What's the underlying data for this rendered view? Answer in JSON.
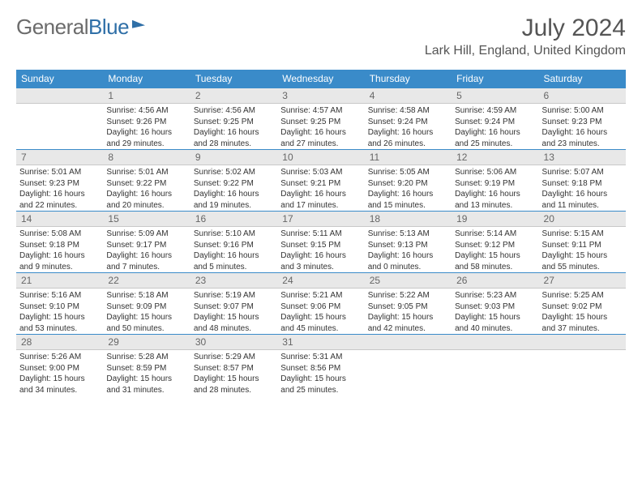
{
  "logo": {
    "word1": "General",
    "word2": "Blue"
  },
  "title": "July 2024",
  "location": "Lark Hill, England, United Kingdom",
  "colors": {
    "header_bg": "#3a8bc9",
    "header_text": "#ffffff",
    "day_bg": "#e8e8e8",
    "accent_line": "#3a8bc9",
    "logo_gray": "#6b6b6b",
    "logo_blue": "#2f6fa7"
  },
  "weekdays": [
    "Sunday",
    "Monday",
    "Tuesday",
    "Wednesday",
    "Thursday",
    "Friday",
    "Saturday"
  ],
  "weeks": [
    [
      {
        "n": ""
      },
      {
        "n": "1",
        "sr": "Sunrise: 4:56 AM",
        "ss": "Sunset: 9:26 PM",
        "d1": "Daylight: 16 hours",
        "d2": "and 29 minutes."
      },
      {
        "n": "2",
        "sr": "Sunrise: 4:56 AM",
        "ss": "Sunset: 9:25 PM",
        "d1": "Daylight: 16 hours",
        "d2": "and 28 minutes."
      },
      {
        "n": "3",
        "sr": "Sunrise: 4:57 AM",
        "ss": "Sunset: 9:25 PM",
        "d1": "Daylight: 16 hours",
        "d2": "and 27 minutes."
      },
      {
        "n": "4",
        "sr": "Sunrise: 4:58 AM",
        "ss": "Sunset: 9:24 PM",
        "d1": "Daylight: 16 hours",
        "d2": "and 26 minutes."
      },
      {
        "n": "5",
        "sr": "Sunrise: 4:59 AM",
        "ss": "Sunset: 9:24 PM",
        "d1": "Daylight: 16 hours",
        "d2": "and 25 minutes."
      },
      {
        "n": "6",
        "sr": "Sunrise: 5:00 AM",
        "ss": "Sunset: 9:23 PM",
        "d1": "Daylight: 16 hours",
        "d2": "and 23 minutes."
      }
    ],
    [
      {
        "n": "7",
        "sr": "Sunrise: 5:01 AM",
        "ss": "Sunset: 9:23 PM",
        "d1": "Daylight: 16 hours",
        "d2": "and 22 minutes."
      },
      {
        "n": "8",
        "sr": "Sunrise: 5:01 AM",
        "ss": "Sunset: 9:22 PM",
        "d1": "Daylight: 16 hours",
        "d2": "and 20 minutes."
      },
      {
        "n": "9",
        "sr": "Sunrise: 5:02 AM",
        "ss": "Sunset: 9:22 PM",
        "d1": "Daylight: 16 hours",
        "d2": "and 19 minutes."
      },
      {
        "n": "10",
        "sr": "Sunrise: 5:03 AM",
        "ss": "Sunset: 9:21 PM",
        "d1": "Daylight: 16 hours",
        "d2": "and 17 minutes."
      },
      {
        "n": "11",
        "sr": "Sunrise: 5:05 AM",
        "ss": "Sunset: 9:20 PM",
        "d1": "Daylight: 16 hours",
        "d2": "and 15 minutes."
      },
      {
        "n": "12",
        "sr": "Sunrise: 5:06 AM",
        "ss": "Sunset: 9:19 PM",
        "d1": "Daylight: 16 hours",
        "d2": "and 13 minutes."
      },
      {
        "n": "13",
        "sr": "Sunrise: 5:07 AM",
        "ss": "Sunset: 9:18 PM",
        "d1": "Daylight: 16 hours",
        "d2": "and 11 minutes."
      }
    ],
    [
      {
        "n": "14",
        "sr": "Sunrise: 5:08 AM",
        "ss": "Sunset: 9:18 PM",
        "d1": "Daylight: 16 hours",
        "d2": "and 9 minutes."
      },
      {
        "n": "15",
        "sr": "Sunrise: 5:09 AM",
        "ss": "Sunset: 9:17 PM",
        "d1": "Daylight: 16 hours",
        "d2": "and 7 minutes."
      },
      {
        "n": "16",
        "sr": "Sunrise: 5:10 AM",
        "ss": "Sunset: 9:16 PM",
        "d1": "Daylight: 16 hours",
        "d2": "and 5 minutes."
      },
      {
        "n": "17",
        "sr": "Sunrise: 5:11 AM",
        "ss": "Sunset: 9:15 PM",
        "d1": "Daylight: 16 hours",
        "d2": "and 3 minutes."
      },
      {
        "n": "18",
        "sr": "Sunrise: 5:13 AM",
        "ss": "Sunset: 9:13 PM",
        "d1": "Daylight: 16 hours",
        "d2": "and 0 minutes."
      },
      {
        "n": "19",
        "sr": "Sunrise: 5:14 AM",
        "ss": "Sunset: 9:12 PM",
        "d1": "Daylight: 15 hours",
        "d2": "and 58 minutes."
      },
      {
        "n": "20",
        "sr": "Sunrise: 5:15 AM",
        "ss": "Sunset: 9:11 PM",
        "d1": "Daylight: 15 hours",
        "d2": "and 55 minutes."
      }
    ],
    [
      {
        "n": "21",
        "sr": "Sunrise: 5:16 AM",
        "ss": "Sunset: 9:10 PM",
        "d1": "Daylight: 15 hours",
        "d2": "and 53 minutes."
      },
      {
        "n": "22",
        "sr": "Sunrise: 5:18 AM",
        "ss": "Sunset: 9:09 PM",
        "d1": "Daylight: 15 hours",
        "d2": "and 50 minutes."
      },
      {
        "n": "23",
        "sr": "Sunrise: 5:19 AM",
        "ss": "Sunset: 9:07 PM",
        "d1": "Daylight: 15 hours",
        "d2": "and 48 minutes."
      },
      {
        "n": "24",
        "sr": "Sunrise: 5:21 AM",
        "ss": "Sunset: 9:06 PM",
        "d1": "Daylight: 15 hours",
        "d2": "and 45 minutes."
      },
      {
        "n": "25",
        "sr": "Sunrise: 5:22 AM",
        "ss": "Sunset: 9:05 PM",
        "d1": "Daylight: 15 hours",
        "d2": "and 42 minutes."
      },
      {
        "n": "26",
        "sr": "Sunrise: 5:23 AM",
        "ss": "Sunset: 9:03 PM",
        "d1": "Daylight: 15 hours",
        "d2": "and 40 minutes."
      },
      {
        "n": "27",
        "sr": "Sunrise: 5:25 AM",
        "ss": "Sunset: 9:02 PM",
        "d1": "Daylight: 15 hours",
        "d2": "and 37 minutes."
      }
    ],
    [
      {
        "n": "28",
        "sr": "Sunrise: 5:26 AM",
        "ss": "Sunset: 9:00 PM",
        "d1": "Daylight: 15 hours",
        "d2": "and 34 minutes."
      },
      {
        "n": "29",
        "sr": "Sunrise: 5:28 AM",
        "ss": "Sunset: 8:59 PM",
        "d1": "Daylight: 15 hours",
        "d2": "and 31 minutes."
      },
      {
        "n": "30",
        "sr": "Sunrise: 5:29 AM",
        "ss": "Sunset: 8:57 PM",
        "d1": "Daylight: 15 hours",
        "d2": "and 28 minutes."
      },
      {
        "n": "31",
        "sr": "Sunrise: 5:31 AM",
        "ss": "Sunset: 8:56 PM",
        "d1": "Daylight: 15 hours",
        "d2": "and 25 minutes."
      },
      {
        "n": ""
      },
      {
        "n": ""
      },
      {
        "n": ""
      }
    ]
  ]
}
